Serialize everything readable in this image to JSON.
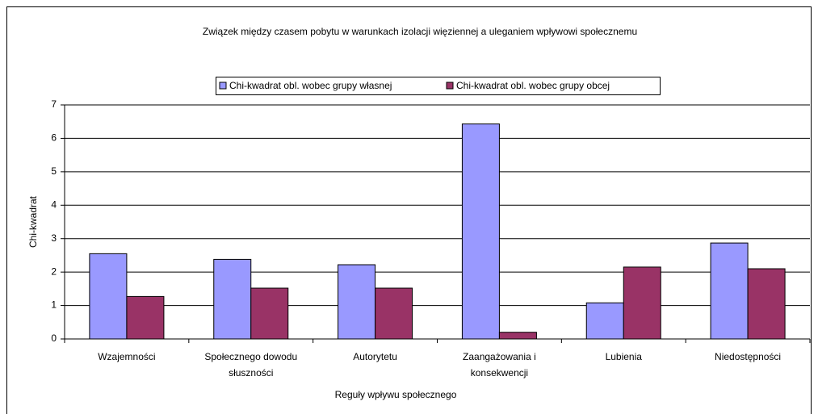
{
  "chart_data": {
    "type": "bar",
    "title": "Związek między czasem pobytu w warunkach izolacji więziennej a uleganiem wpływowi społecznemu",
    "x_label": "Reguły wpływu społecznego",
    "y_label": "Chi-kwadrat",
    "categories": [
      "Wzajemności",
      "Społecznego dowodu słuszności",
      "Autorytetu",
      "Zaangażowania i konsekwencji",
      "Lubienia",
      "Niedostępności"
    ],
    "series": [
      {
        "name": "Chi-kwadrat obl. wobec grupy własnej",
        "color": "#9999ff",
        "values": [
          2.55,
          2.38,
          2.22,
          6.43,
          1.08,
          2.87
        ]
      },
      {
        "name": "Chi-kwadrat obl. wobec grupy obcej",
        "color": "#993366",
        "values": [
          1.27,
          1.52,
          1.52,
          0.2,
          2.15,
          2.1
        ]
      }
    ],
    "ylim": [
      0,
      7
    ],
    "yticks": [
      0,
      1,
      2,
      3,
      4,
      5,
      6,
      7
    ],
    "grid": true,
    "legend": "top"
  }
}
